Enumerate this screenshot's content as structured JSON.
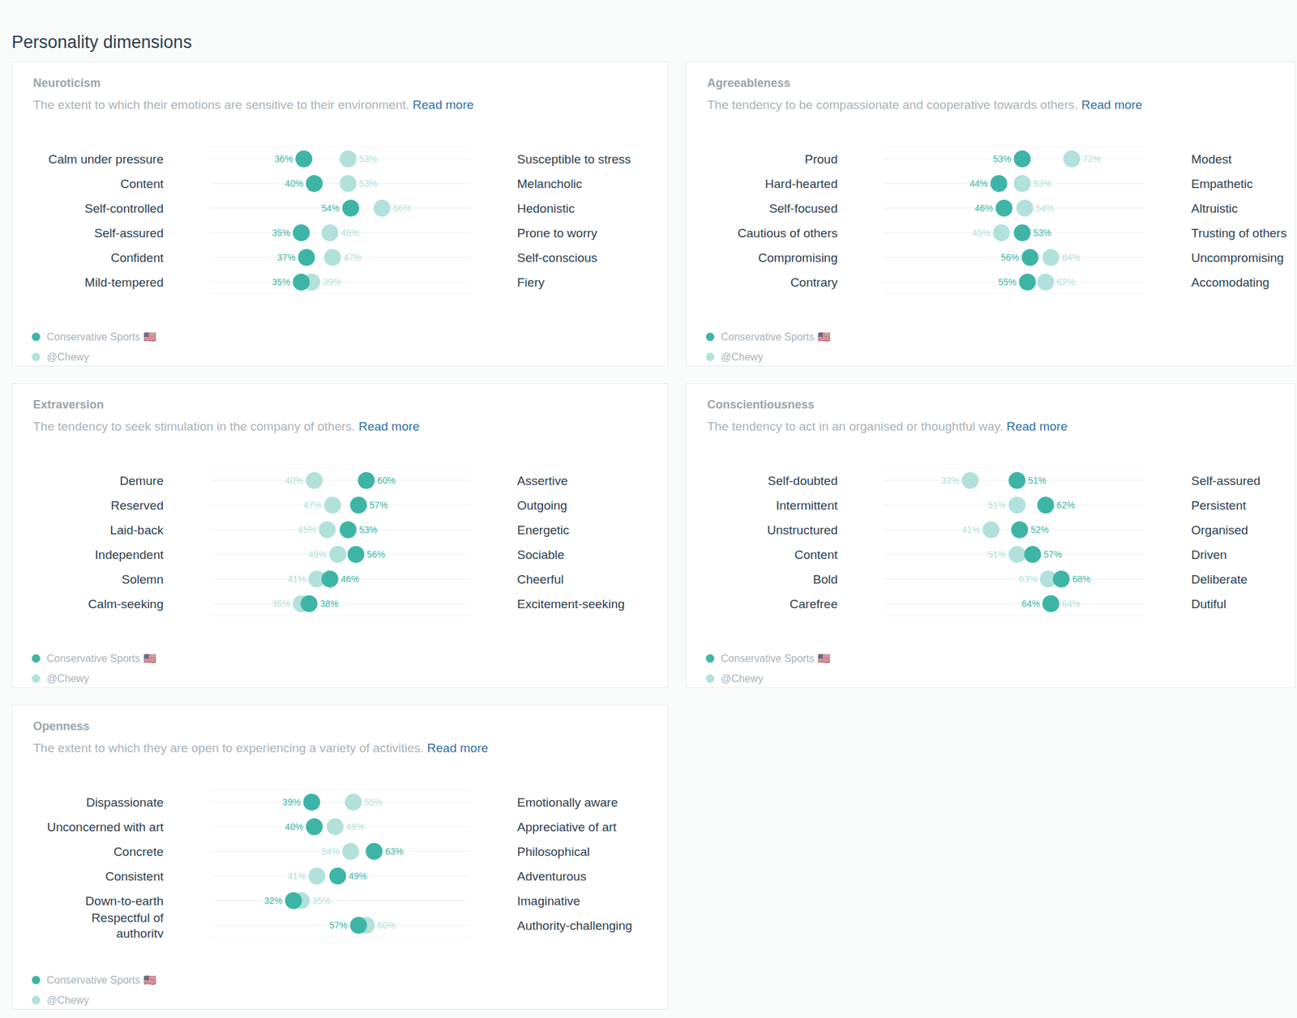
{
  "title": "Personality dimensions",
  "chart_data": [
    {
      "type": "scatter",
      "title": "Neuroticism",
      "subtitle": "The extent to which their emotions are sensitive to their environment.",
      "link": "Read more",
      "categories": [
        "Calm under pressure",
        "Content",
        "Self-controlled",
        "Self-assured",
        "Confident",
        "Mild-tempered"
      ],
      "categories_right": [
        "Susceptible to stress",
        "Melancholic",
        "Hedonistic",
        "Prone to worry",
        "Self-conscious",
        "Fiery"
      ],
      "series": [
        {
          "name": "Conservative Sports 🇺🇸",
          "color": "#3db5a6",
          "values": [
            36,
            40,
            54,
            35,
            37,
            35
          ],
          "value_labels": [
            "36%",
            "40%",
            "54%",
            "35%",
            "37%",
            "35%"
          ]
        },
        {
          "name": "@Chewy",
          "color": "#b1e1da",
          "values": [
            53,
            53,
            66,
            46,
            47,
            39
          ],
          "value_labels": [
            "53%",
            "53%",
            "66%",
            "46%",
            "47%",
            "39%"
          ]
        }
      ],
      "xlim": [
        0,
        100
      ],
      "grid": true,
      "legend": "bottom left",
      "data_labels": true,
      "tick_labels": "y"
    },
    {
      "type": "scatter",
      "title": "Agreeableness",
      "subtitle": "The tendency to be compassionate and cooperative towards others.",
      "link": "Read more",
      "categories": [
        "Proud",
        "Hard-hearted",
        "Self-focused",
        "Cautious of others",
        "Compromising",
        "Contrary"
      ],
      "categories_right": [
        "Modest",
        "Empathetic",
        "Altruistic",
        "Trusting of others",
        "Uncompromising",
        "Accomodating"
      ],
      "series": [
        {
          "name": "Conservative Sports 🇺🇸",
          "color": "#3db5a6",
          "values": [
            53,
            44,
            46,
            53,
            56,
            55
          ],
          "value_labels": [
            "53%",
            "44%",
            "46%",
            "53%",
            "56%",
            "55%"
          ]
        },
        {
          "name": "@Chewy",
          "color": "#b1e1da",
          "values": [
            72,
            53,
            54,
            45,
            64,
            62
          ],
          "value_labels": [
            "72%",
            "53%",
            "54%",
            "45%",
            "64%",
            "62%"
          ]
        }
      ],
      "xlim": [
        0,
        100
      ],
      "grid": true,
      "legend": "bottom left",
      "data_labels": true,
      "tick_labels": "y"
    },
    {
      "type": "scatter",
      "title": "Extraversion",
      "subtitle": "The tendency to seek stimulation in the company of others.",
      "link": "Read more",
      "categories": [
        "Demure",
        "Reserved",
        "Laid-back",
        "Independent",
        "Solemn",
        "Calm-seeking"
      ],
      "categories_right": [
        "Assertive",
        "Outgoing",
        "Energetic",
        "Sociable",
        "Cheerful",
        "Excitement-seeking"
      ],
      "series": [
        {
          "name": "Conservative Sports 🇺🇸",
          "color": "#3db5a6",
          "values": [
            60,
            57,
            53,
            56,
            46,
            38
          ],
          "value_labels": [
            "60%",
            "57%",
            "53%",
            "56%",
            "46%",
            "38%"
          ]
        },
        {
          "name": "@Chewy",
          "color": "#b1e1da",
          "values": [
            40,
            47,
            45,
            49,
            41,
            35
          ],
          "value_labels": [
            "40%",
            "47%",
            "45%",
            "49%",
            "41%",
            "35%"
          ]
        }
      ],
      "xlim": [
        0,
        100
      ],
      "grid": true,
      "legend": "bottom left",
      "data_labels": true,
      "tick_labels": "y"
    },
    {
      "type": "scatter",
      "title": "Conscientiousness",
      "subtitle": "The tendency to act in an organised or thoughtful way.",
      "link": "Read more",
      "categories": [
        "Self-doubted",
        "Intermittent",
        "Unstructured",
        "Content",
        "Bold",
        "Carefree"
      ],
      "categories_right": [
        "Self-assured",
        "Persistent",
        "Organised",
        "Driven",
        "Deliberate",
        "Dutiful"
      ],
      "series": [
        {
          "name": "Conservative Sports 🇺🇸",
          "color": "#3db5a6",
          "values": [
            51,
            62,
            52,
            57,
            68,
            64
          ],
          "value_labels": [
            "51%",
            "62%",
            "52%",
            "57%",
            "68%",
            "64%"
          ]
        },
        {
          "name": "@Chewy",
          "color": "#b1e1da",
          "values": [
            33,
            51,
            41,
            51,
            63,
            64
          ],
          "value_labels": [
            "33%",
            "51%",
            "41%",
            "51%",
            "63%",
            "64%"
          ]
        }
      ],
      "xlim": [
        0,
        100
      ],
      "grid": true,
      "legend": "bottom left",
      "data_labels": true,
      "tick_labels": "y"
    },
    {
      "type": "scatter",
      "title": "Openness",
      "subtitle": "The extent to which they are open to experiencing a variety of activities.",
      "link": "Read more",
      "categories": [
        "Dispassionate",
        "Unconcerned with art",
        "Concrete",
        "Consistent",
        "Down-to-earth",
        "Respectful of authority"
      ],
      "categories_right": [
        "Emotionally aware",
        "Appreciative of art",
        "Philosophical",
        "Adventurous",
        "Imaginative",
        "Authority-challenging"
      ],
      "series": [
        {
          "name": "Conservative Sports 🇺🇸",
          "color": "#3db5a6",
          "values": [
            39,
            40,
            63,
            49,
            32,
            57
          ],
          "value_labels": [
            "39%",
            "40%",
            "63%",
            "49%",
            "32%",
            "57%"
          ]
        },
        {
          "name": "@Chewy",
          "color": "#b1e1da",
          "values": [
            55,
            48,
            54,
            41,
            35,
            60
          ],
          "value_labels": [
            "55%",
            "48%",
            "54%",
            "41%",
            "35%",
            "60%"
          ]
        }
      ],
      "xlim": [
        0,
        100
      ],
      "grid": true,
      "legend": "bottom left",
      "data_labels": true,
      "tick_labels": "y"
    }
  ]
}
